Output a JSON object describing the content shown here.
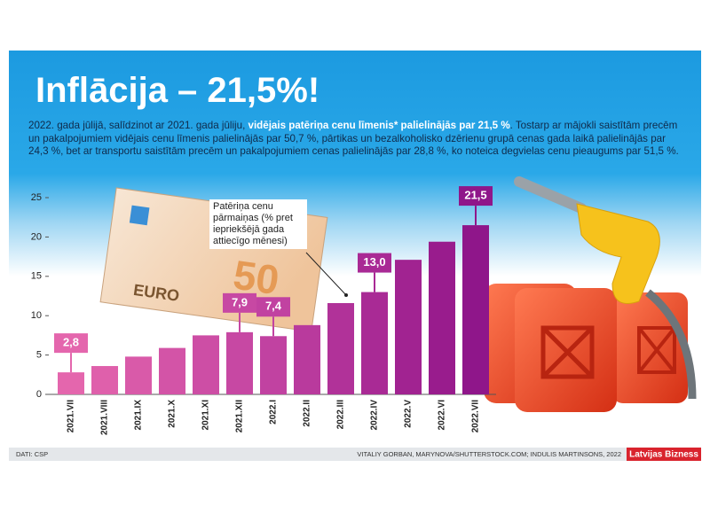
{
  "chart_data": {
    "type": "bar",
    "title": "Inflācija – 21,5%!",
    "intro": [
      {
        "text": "2022. gada jūlijā, salīdzinot ar 2021. gada jūliju, ",
        "bold": false
      },
      {
        "text": "vidējais patēriņa cenu līmenis* palielinājās par 21,5 %",
        "bold": true
      },
      {
        "text": ". Tostarp ar mājokli saistītām precēm un pakalpojumiem vidējais cenu līmenis palielinājās par 50,7 %, pārtikas un bezalkoholisko dzērienu grupā cenas gada laikā palielinājās par 24,3 %, bet ar transportu saistītām precēm un pakalpojumiem cenas palielinājās par 28,8 %, ko noteica degvielas cenu pieaugums par 51,5 %.",
        "bold": false
      }
    ],
    "annotation": "Patēriņa cenu pārmaiņas (% pret iepriekšējā gada attiecīgo mēnesi)",
    "categories": [
      "2021.VII",
      "2021.VIII",
      "2021.IX",
      "2021.X",
      "2021.XI",
      "2021.XII",
      "2022.I",
      "2022.II",
      "2022.III",
      "2022.IV",
      "2022.V",
      "2022.VI",
      "2022.VII"
    ],
    "values": [
      2.8,
      3.6,
      4.8,
      5.9,
      7.5,
      7.9,
      7.4,
      8.8,
      11.6,
      13.0,
      17.1,
      19.4,
      21.5
    ],
    "value_labels": [
      "2,8",
      null,
      null,
      null,
      null,
      "7,9",
      "7,4",
      null,
      null,
      "13,0",
      null,
      null,
      "21,5"
    ],
    "colors": [
      "#e466ad",
      "#df60ab",
      "#d95aa9",
      "#d354a7",
      "#cd4ea5",
      "#c748a3",
      "#c142a1",
      "#b93a9d",
      "#b13299",
      "#a92a95",
      "#a12391",
      "#991c8d",
      "#8f168a"
    ],
    "ylim": [
      0,
      25
    ],
    "yticks": [
      0,
      5,
      10,
      15,
      20,
      25
    ],
    "source": "DATI: CSP",
    "credits": "VITALIY GORBAN, MARYNOVA/SHUTTERSTOCK.COM; INDULIS MARTINSONS, 2022",
    "brand": "Latvijas Bizness"
  }
}
